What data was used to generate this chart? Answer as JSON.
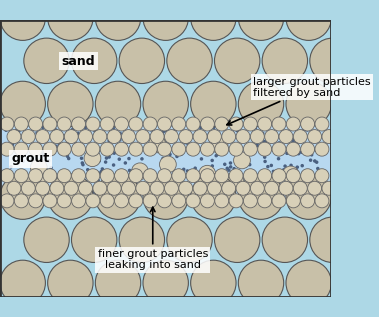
{
  "background_color": "#add8e6",
  "sand_circle_color": "#c8c0a8",
  "sand_circle_edge": "#555555",
  "small_circle_color": "#d8d0b8",
  "small_circle_edge": "#666666",
  "tiny_dot_color": "#4a6080",
  "grout_bg_color": "#b8d8f0",
  "fig_width": 3.79,
  "fig_height": 3.17,
  "dpi": 100,
  "title": "",
  "label_sand": "sand",
  "label_grout": "grout",
  "label_larger": "larger grout particles\nfiltered by sand",
  "label_finer": "finer grout particles\nleaking into sand",
  "label_fontsize": 9,
  "border_color": "#333333"
}
